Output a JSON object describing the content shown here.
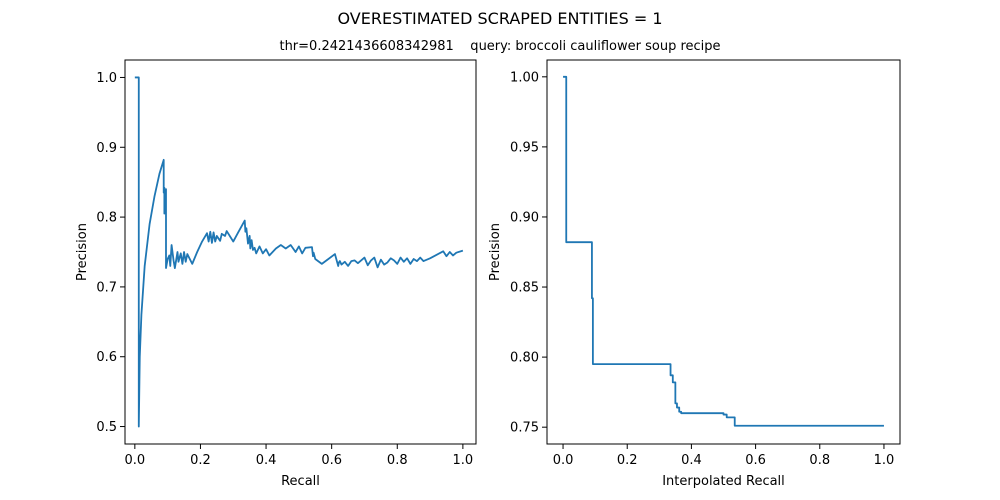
{
  "figure": {
    "suptitle": "OVERESTIMATED SCRAPED ENTITIES = 1",
    "subtitle": "thr=0.2421436608342981    query: broccoli cauliflower soup recipe"
  },
  "chart_data": [
    {
      "type": "line",
      "xlabel": "Recall",
      "ylabel": "Precision",
      "xlim": [
        -0.03,
        1.04
      ],
      "ylim": [
        0.475,
        1.025
      ],
      "xticks": [
        0.0,
        0.2,
        0.4,
        0.6,
        0.8,
        1.0
      ],
      "xtick_labels": [
        "0.0",
        "0.2",
        "0.4",
        "0.6",
        "0.8",
        "1.0"
      ],
      "yticks": [
        0.5,
        0.6,
        0.7,
        0.8,
        0.9,
        1.0
      ],
      "ytick_labels": [
        "0.5",
        "0.6",
        "0.7",
        "0.8",
        "0.9",
        "1.0"
      ],
      "grid": false,
      "color": "#1f77b4",
      "series": [
        {
          "x": [
            0.0,
            0.012,
            0.012,
            0.015,
            0.02,
            0.03,
            0.045,
            0.06,
            0.075,
            0.088,
            0.088,
            0.09,
            0.09,
            0.095,
            0.095,
            0.1,
            0.105,
            0.108,
            0.112,
            0.118,
            0.122,
            0.13,
            0.133,
            0.14,
            0.145,
            0.15,
            0.155,
            0.16,
            0.175,
            0.19,
            0.205,
            0.22,
            0.225,
            0.23,
            0.235,
            0.24,
            0.245,
            0.25,
            0.26,
            0.265,
            0.275,
            0.28,
            0.3,
            0.315,
            0.335,
            0.337,
            0.34,
            0.345,
            0.35,
            0.352,
            0.356,
            0.36,
            0.365,
            0.37,
            0.38,
            0.39,
            0.4,
            0.41,
            0.42,
            0.43,
            0.445,
            0.46,
            0.475,
            0.49,
            0.5,
            0.51,
            0.52,
            0.54,
            0.543,
            0.545,
            0.55,
            0.57,
            0.59,
            0.61,
            0.62,
            0.622,
            0.625,
            0.63,
            0.64,
            0.65,
            0.66,
            0.67,
            0.68,
            0.7,
            0.71,
            0.72,
            0.73,
            0.74,
            0.75,
            0.76,
            0.77,
            0.78,
            0.79,
            0.8,
            0.81,
            0.82,
            0.83,
            0.84,
            0.85,
            0.86,
            0.87,
            0.88,
            0.9,
            0.92,
            0.94,
            0.95,
            0.96,
            0.97,
            0.98,
            1.0
          ],
          "y": [
            1.0,
            1.0,
            0.5,
            0.6,
            0.66,
            0.73,
            0.79,
            0.83,
            0.862,
            0.882,
            0.835,
            0.842,
            0.805,
            0.84,
            0.727,
            0.74,
            0.745,
            0.73,
            0.76,
            0.738,
            0.727,
            0.75,
            0.736,
            0.748,
            0.733,
            0.75,
            0.736,
            0.747,
            0.733,
            0.75,
            0.765,
            0.777,
            0.765,
            0.779,
            0.763,
            0.778,
            0.765,
            0.773,
            0.766,
            0.776,
            0.773,
            0.78,
            0.765,
            0.778,
            0.795,
            0.779,
            0.784,
            0.762,
            0.773,
            0.755,
            0.767,
            0.753,
            0.756,
            0.748,
            0.758,
            0.748,
            0.754,
            0.745,
            0.75,
            0.755,
            0.76,
            0.755,
            0.76,
            0.75,
            0.758,
            0.748,
            0.756,
            0.757,
            0.744,
            0.749,
            0.74,
            0.733,
            0.74,
            0.747,
            0.73,
            0.735,
            0.737,
            0.732,
            0.736,
            0.73,
            0.737,
            0.738,
            0.734,
            0.742,
            0.731,
            0.738,
            0.742,
            0.728,
            0.739,
            0.732,
            0.735,
            0.741,
            0.738,
            0.733,
            0.742,
            0.736,
            0.741,
            0.733,
            0.74,
            0.737,
            0.742,
            0.737,
            0.741,
            0.746,
            0.751,
            0.744,
            0.75,
            0.745,
            0.749,
            0.752
          ]
        }
      ]
    },
    {
      "type": "line",
      "xlabel": "Interpolated Recall",
      "ylabel": "Precision",
      "xlim": [
        -0.05,
        1.05
      ],
      "ylim": [
        0.738,
        1.012
      ],
      "xticks": [
        0.0,
        0.2,
        0.4,
        0.6,
        0.8,
        1.0
      ],
      "xtick_labels": [
        "0.0",
        "0.2",
        "0.4",
        "0.6",
        "0.8",
        "1.0"
      ],
      "yticks": [
        0.75,
        0.8,
        0.85,
        0.9,
        0.95,
        1.0
      ],
      "ytick_labels": [
        "0.75",
        "0.80",
        "0.85",
        "0.90",
        "0.95",
        "1.00"
      ],
      "grid": false,
      "color": "#1f77b4",
      "series": [
        {
          "x": [
            0.0,
            0.01,
            0.01,
            0.09,
            0.09,
            0.093,
            0.093,
            0.335,
            0.335,
            0.342,
            0.342,
            0.35,
            0.35,
            0.355,
            0.355,
            0.362,
            0.362,
            0.368,
            0.368,
            0.5,
            0.5,
            0.51,
            0.51,
            0.535,
            0.535,
            1.0
          ],
          "y": [
            1.0,
            1.0,
            0.882,
            0.882,
            0.842,
            0.842,
            0.795,
            0.795,
            0.787,
            0.787,
            0.782,
            0.782,
            0.767,
            0.767,
            0.764,
            0.764,
            0.761,
            0.761,
            0.76,
            0.76,
            0.759,
            0.759,
            0.757,
            0.757,
            0.751,
            0.751
          ]
        }
      ]
    }
  ]
}
